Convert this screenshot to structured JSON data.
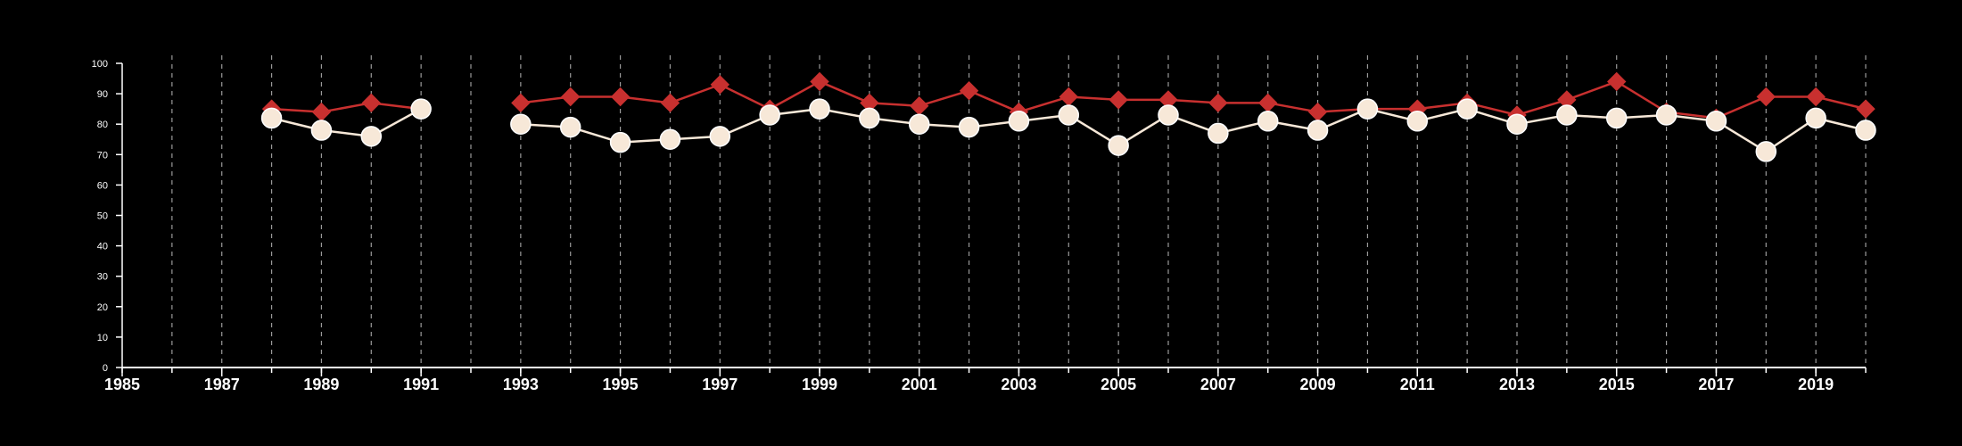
{
  "chart_data": {
    "type": "line",
    "x_ticks": [
      1985,
      1987,
      1989,
      1991,
      1993,
      1995,
      1997,
      1999,
      2001,
      2003,
      2005,
      2007,
      2009,
      2011,
      2013,
      2015,
      2017,
      2019
    ],
    "y_ticks": [
      0,
      10,
      20,
      30,
      40,
      50,
      60,
      70,
      80,
      90,
      100
    ],
    "xlim": [
      1985,
      2020
    ],
    "ylim": [
      0,
      100
    ],
    "vertical_grid_years": [
      1986,
      1987,
      1988,
      1989,
      1990,
      1991,
      1992,
      1993,
      1994,
      1995,
      1996,
      1997,
      1998,
      1999,
      2000,
      2001,
      2002,
      2003,
      2004,
      2005,
      2006,
      2007,
      2008,
      2009,
      2010,
      2011,
      2012,
      2013,
      2014,
      2015,
      2016,
      2017,
      2018,
      2019,
      2020
    ],
    "grid": "vertical dashed",
    "series": [
      {
        "marker": "diamond",
        "color": "#c8302f",
        "x": [
          1988,
          1989,
          1990,
          1991,
          1993,
          1994,
          1995,
          1996,
          1997,
          1998,
          1999,
          2000,
          2001,
          2002,
          2003,
          2004,
          2005,
          2006,
          2007,
          2008,
          2009,
          2010,
          2011,
          2012,
          2013,
          2014,
          2015,
          2016,
          2017,
          2018,
          2019,
          2020
        ],
        "values": [
          85,
          84,
          87,
          85,
          87,
          89,
          89,
          87,
          93,
          85,
          94,
          87,
          86,
          91,
          84,
          89,
          88,
          88,
          87,
          87,
          84,
          85,
          85,
          87,
          83,
          88,
          94,
          84,
          82,
          89,
          89,
          85
        ]
      },
      {
        "marker": "circle",
        "color": "#f7e8d8",
        "x": [
          1988,
          1989,
          1990,
          1991,
          1993,
          1994,
          1995,
          1996,
          1997,
          1998,
          1999,
          2000,
          2001,
          2002,
          2003,
          2004,
          2005,
          2006,
          2007,
          2008,
          2009,
          2010,
          2011,
          2012,
          2013,
          2014,
          2015,
          2016,
          2017,
          2018,
          2019,
          2020
        ],
        "values": [
          82,
          78,
          76,
          85,
          80,
          79,
          74,
          75,
          76,
          83,
          85,
          82,
          80,
          79,
          81,
          83,
          73,
          83,
          77,
          81,
          78,
          85,
          81,
          85,
          80,
          83,
          82,
          83,
          81,
          71,
          82,
          78
        ]
      }
    ]
  }
}
